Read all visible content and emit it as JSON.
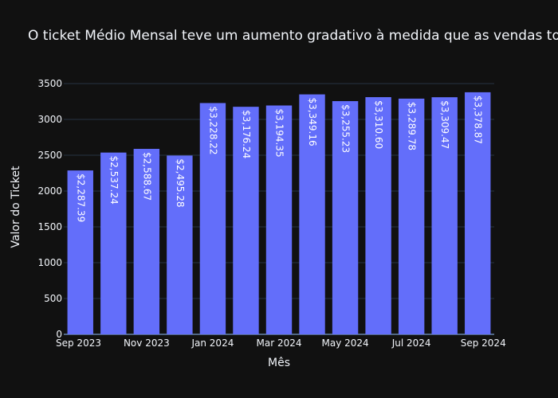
{
  "chart_data": {
    "type": "bar",
    "title": "O ticket Médio Mensal teve um aumento gradativo à medida que as vendas to",
    "xlabel": "Mês",
    "ylabel": "Valor do Ticket",
    "ylim": [
      0,
      3500
    ],
    "yticks": [
      "0",
      "500",
      "1000",
      "1500",
      "2000",
      "2500",
      "3000",
      "3500"
    ],
    "ytick_values": [
      0,
      500,
      1000,
      1500,
      2000,
      2500,
      3000,
      3500
    ],
    "xticks": [
      "Sep 2023",
      "Nov 2023",
      "Jan 2024",
      "Mar 2024",
      "May 2024",
      "Jul 2024",
      "Sep 2024"
    ],
    "xtick_index": [
      0,
      2,
      4,
      6,
      8,
      10,
      12
    ],
    "categories": [
      "2023-09",
      "2023-10",
      "2023-11",
      "2023-12",
      "2024-01",
      "2024-02",
      "2024-03",
      "2024-04",
      "2024-05",
      "2024-06",
      "2024-07",
      "2024-08",
      "2024-09"
    ],
    "values": [
      2287.39,
      2537.24,
      2588.67,
      2495.28,
      3228.22,
      3176.24,
      3194.35,
      3349.16,
      3255.23,
      3310.6,
      3289.78,
      3309.47,
      3378.87
    ],
    "labels": [
      "$2,287.39",
      "$2,537.24",
      "$2,588.67",
      "$2,495.28",
      "$3,228.22",
      "$3,176.24",
      "$3,194.35",
      "$3,349.16",
      "$3,255.23",
      "$3,310.60",
      "$3,289.78",
      "$3,309.47",
      "$3,378.87"
    ],
    "bar_color": "#636efa",
    "grid": true,
    "legend": false
  }
}
